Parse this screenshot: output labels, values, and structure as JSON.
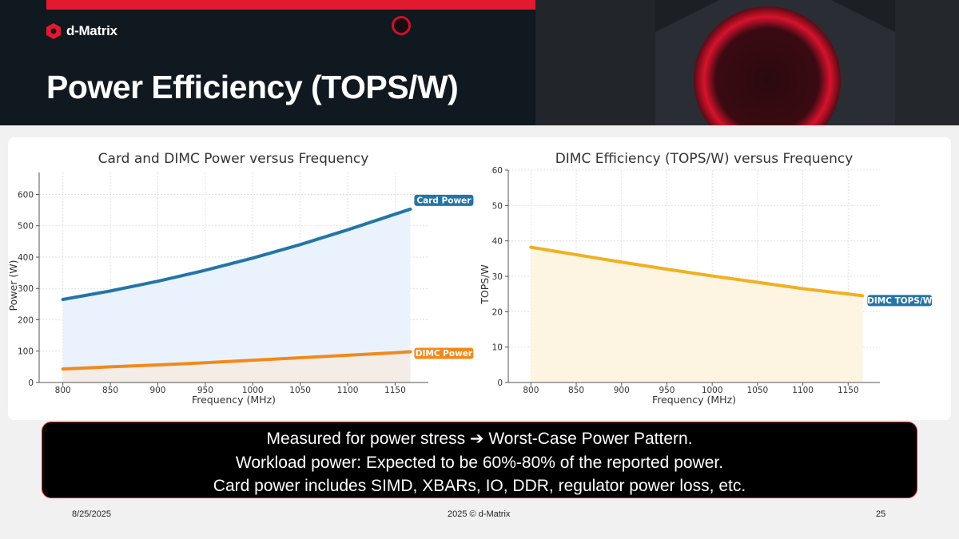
{
  "brand": {
    "name": "d-Matrix"
  },
  "slide": {
    "title": "Power Efficiency (TOPS/W)"
  },
  "colors": {
    "brand_red": "#e3192f",
    "card_power": "#2474a8",
    "dimc_power": "#f08a1c",
    "dimc_tops": "#f0b022"
  },
  "chart_data": [
    {
      "type": "line",
      "title": "Card and DIMC Power versus Frequency",
      "xlabel": "Frequency (MHz)",
      "ylabel": "Power (W)",
      "xlim": [
        775,
        1185
      ],
      "ylim": [
        0,
        670
      ],
      "xticks": [
        800,
        850,
        900,
        950,
        1000,
        1050,
        1100,
        1150
      ],
      "yticks": [
        0,
        100,
        200,
        300,
        400,
        500,
        600
      ],
      "grid": true,
      "x": [
        800,
        850,
        900,
        950,
        1000,
        1050,
        1100,
        1150,
        1166
      ],
      "series": [
        {
          "name": "Card Power",
          "color": "#2474a8",
          "values": [
            265,
            292,
            323,
            358,
            397,
            440,
            487,
            537,
            553
          ]
        },
        {
          "name": "DIMC Power",
          "color": "#f08a1c",
          "values": [
            43,
            50,
            56,
            63,
            71,
            79,
            87,
            95,
            98
          ]
        }
      ]
    },
    {
      "type": "line",
      "title": "DIMC Efficiency (TOPS/W) versus Frequency",
      "xlabel": "Frequency (MHz)",
      "ylabel": "TOPS/W",
      "xlim": [
        775,
        1185
      ],
      "ylim": [
        0,
        60
      ],
      "xticks": [
        800,
        850,
        900,
        950,
        1000,
        1050,
        1100,
        1150
      ],
      "yticks": [
        0,
        10,
        20,
        30,
        40,
        50,
        60
      ],
      "grid": true,
      "x": [
        800,
        850,
        900,
        950,
        1000,
        1050,
        1100,
        1150,
        1166
      ],
      "series": [
        {
          "name": "DIMC TOPS/W",
          "color": "#f0b022",
          "values": [
            38.2,
            36.1,
            34.0,
            32.0,
            30.1,
            28.3,
            26.5,
            25.0,
            24.5
          ]
        }
      ]
    }
  ],
  "note": {
    "line1": "Measured for power stress ➔ Worst-Case Power Pattern.",
    "line2": "Workload power: Expected to be 60%-80% of the reported power.",
    "line3": "Card power includes  SIMD, XBARs, IO, DDR, regulator power loss, etc."
  },
  "footer": {
    "date": "8/25/2025",
    "copyright": "2025 © d-Matrix",
    "page": "25"
  }
}
